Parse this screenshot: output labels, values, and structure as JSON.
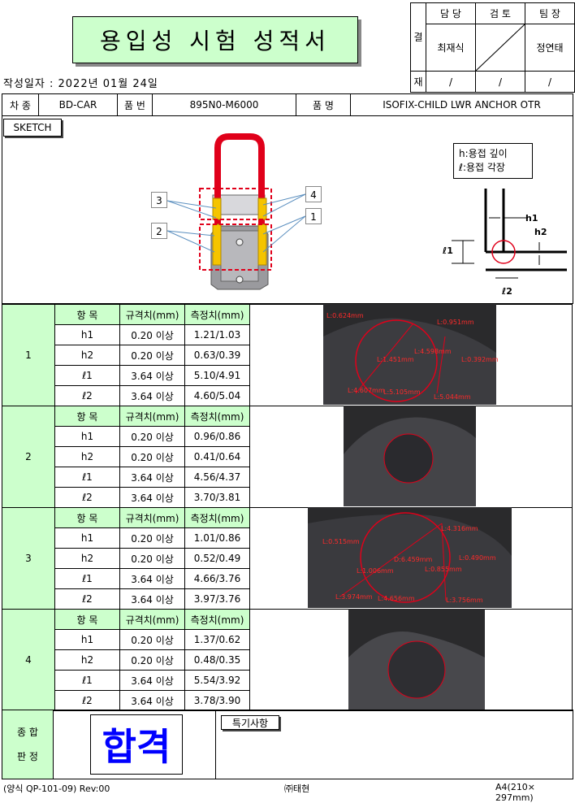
{
  "title": "용입성 시험 성적서",
  "approval": {
    "side_labels": [
      "결",
      "재"
    ],
    "headers": [
      "담 당",
      "검 토",
      "팀 장"
    ],
    "names": [
      "최재식",
      "",
      "정연태"
    ],
    "dates": [
      "/",
      "/",
      "/"
    ]
  },
  "date": {
    "label": "작성일자",
    "sep": ":",
    "value": "2022년 01월 24일"
  },
  "info": {
    "car_label": "차 종",
    "car_value": "BD-CAR",
    "part_no_label": "품 번",
    "part_no_value": "895N0-M6000",
    "part_name_label": "품 명",
    "part_name_value": "ISOFIX-CHILD LWR ANCHOR OTR"
  },
  "sketch": {
    "button": "SKETCH",
    "legend": [
      "h:용접 깊이",
      "ℓ:용접 각장"
    ],
    "callouts": [
      "3",
      "2",
      "4",
      "1"
    ],
    "diagram_labels": {
      "h1": "h1",
      "h2": "h2",
      "l1": "ℓ1",
      "l2": "ℓ2"
    }
  },
  "table_headers": {
    "item": "항  목",
    "spec": "규격치(mm)",
    "measured": "측정치(mm)"
  },
  "groups": [
    {
      "no": "1",
      "rows": [
        {
          "item": "h1",
          "spec": "0.20 이상",
          "measured": "1.21/1.03"
        },
        {
          "item": "h2",
          "spec": "0.20 이상",
          "measured": "0.63/0.39"
        },
        {
          "item": "ℓ1",
          "spec": "3.64 이상",
          "measured": "5.10/4.91"
        },
        {
          "item": "ℓ2",
          "spec": "3.64 이상",
          "measured": "4.60/5.04"
        }
      ],
      "photo_labels": [
        "L:0.624mm",
        "L:0.951mm",
        "L:1.451mm",
        "L:4.598mm",
        "L:0.392mm",
        "L:4.607mm",
        "L:5.105mm",
        "L:5.044mm"
      ]
    },
    {
      "no": "2",
      "rows": [
        {
          "item": "h1",
          "spec": "0.20 이상",
          "measured": "0.96/0.86"
        },
        {
          "item": "h2",
          "spec": "0.20 이상",
          "measured": "0.41/0.64"
        },
        {
          "item": "ℓ1",
          "spec": "3.64 이상",
          "measured": "4.56/4.37"
        },
        {
          "item": "ℓ2",
          "spec": "3.64 이상",
          "measured": "3.70/3.81"
        }
      ],
      "photo_labels": []
    },
    {
      "no": "3",
      "rows": [
        {
          "item": "h1",
          "spec": "0.20 이상",
          "measured": "1.01/0.86"
        },
        {
          "item": "h2",
          "spec": "0.20 이상",
          "measured": "0.52/0.49"
        },
        {
          "item": "ℓ1",
          "spec": "3.64 이상",
          "measured": "4.66/3.76"
        },
        {
          "item": "ℓ2",
          "spec": "3.64 이상",
          "measured": "3.97/3.76"
        }
      ],
      "photo_labels": [
        "L:4.316mm",
        "L:0.515mm",
        "D:6.459mm",
        "L:0.490mm",
        "L:1.006mm",
        "L:0.855mm",
        "L:3.974mm",
        "L:4.656mm",
        "L:3.756mm"
      ]
    },
    {
      "no": "4",
      "rows": [
        {
          "item": "h1",
          "spec": "0.20 이상",
          "measured": "1.37/0.62"
        },
        {
          "item": "h2",
          "spec": "0.20 이상",
          "measured": "0.48/0.35"
        },
        {
          "item": "ℓ1",
          "spec": "3.64 이상",
          "measured": "5.54/3.92"
        },
        {
          "item": "ℓ2",
          "spec": "3.64 이상",
          "measured": "3.78/3.90"
        }
      ],
      "photo_labels": []
    }
  ],
  "verdict": {
    "label_line1": "종 합",
    "label_line2": "판 정",
    "result": "합격",
    "remarks_label": "특기사항"
  },
  "footer": {
    "left": "(양식 QP-101-09) Rev:00",
    "center": "㈜태현",
    "right": "A4(210× 297mm)"
  },
  "colors": {
    "accent_green": "#ccffcc",
    "verdict_blue": "#0000ff",
    "weld_yellow": "#f5c400",
    "frame_red": "#e0001a"
  }
}
